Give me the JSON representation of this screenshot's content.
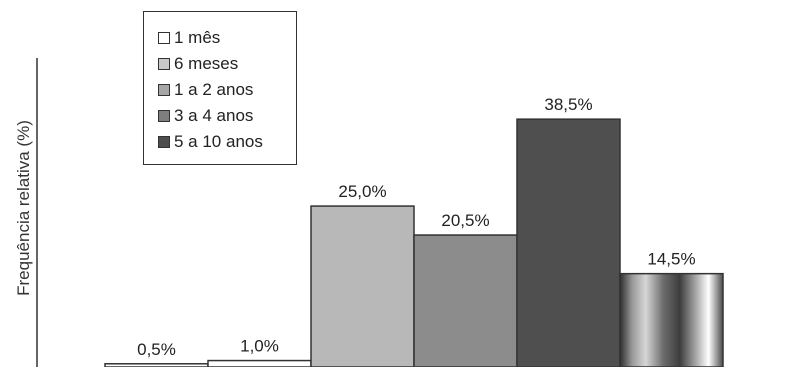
{
  "chart_data": {
    "type": "bar",
    "title": "",
    "xlabel": "",
    "ylabel": "Frequência relativa (%)",
    "ylim": [
      0,
      48
    ],
    "grid": false,
    "legend_placement": "top-left",
    "categories": [
      "1 mês",
      "6 meses",
      "1 a 2 anos",
      "3 a 4 anos",
      "5 a 10 anos",
      ""
    ],
    "values": [
      0.5,
      1.0,
      25.0,
      20.5,
      38.5,
      14.5
    ],
    "value_labels": [
      "0,5%",
      "1,0%",
      "25,0%",
      "20,5%",
      "38,5%",
      "14,5%"
    ],
    "colors": [
      "#ffffff",
      "#ffffff",
      "#b8b8b8",
      "#8c8c8c",
      "#4f4f50",
      "#9a9a9a"
    ],
    "legend": [
      {
        "label": "1 mês",
        "color": "#ffffff"
      },
      {
        "label": "6 meses",
        "color": "#c9c9c9"
      },
      {
        "label": "1 a 2 anos",
        "color": "#a6a6a6"
      },
      {
        "label": "3 a 4 anos",
        "color": "#7e7e7e"
      },
      {
        "label": "5 a 10 anos",
        "color": "#4d4d4d"
      }
    ]
  }
}
